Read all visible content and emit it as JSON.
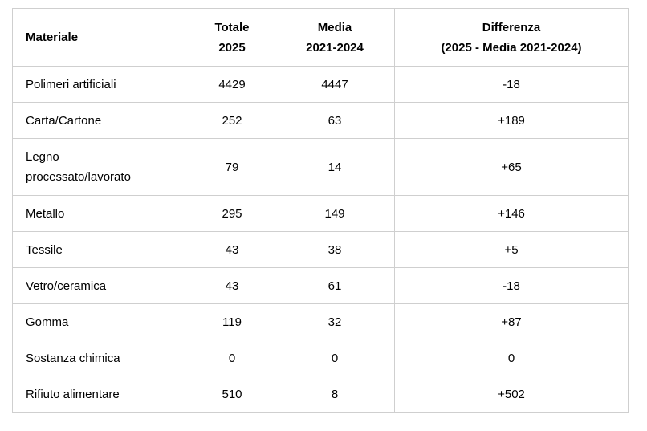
{
  "table": {
    "headers": [
      [
        "Materiale"
      ],
      [
        "Totale",
        "2025"
      ],
      [
        "Media",
        "2021-2024"
      ],
      [
        "Differenza",
        "(2025 - Media 2021-2024)"
      ]
    ],
    "rows": [
      {
        "material": [
          "Polimeri artificiali"
        ],
        "total_2025": "4429",
        "avg_2021_2024": "4447",
        "difference": "-18"
      },
      {
        "material": [
          "Carta/Cartone"
        ],
        "total_2025": "252",
        "avg_2021_2024": "63",
        "difference": "+189"
      },
      {
        "material": [
          "Legno",
          "processato/lavorato"
        ],
        "total_2025": "79",
        "avg_2021_2024": "14",
        "difference": "+65"
      },
      {
        "material": [
          "Metallo"
        ],
        "total_2025": "295",
        "avg_2021_2024": "149",
        "difference": "+146"
      },
      {
        "material": [
          "Tessile"
        ],
        "total_2025": "43",
        "avg_2021_2024": "38",
        "difference": "+5"
      },
      {
        "material": [
          "Vetro/ceramica"
        ],
        "total_2025": "43",
        "avg_2021_2024": "61",
        "difference": "-18"
      },
      {
        "material": [
          "Gomma"
        ],
        "total_2025": "119",
        "avg_2021_2024": "32",
        "difference": "+87"
      },
      {
        "material": [
          "Sostanza chimica"
        ],
        "total_2025": "0",
        "avg_2021_2024": "0",
        "difference": "0"
      },
      {
        "material": [
          "Rifiuto alimentare"
        ],
        "total_2025": "510",
        "avg_2021_2024": "8",
        "difference": "+502"
      }
    ]
  }
}
